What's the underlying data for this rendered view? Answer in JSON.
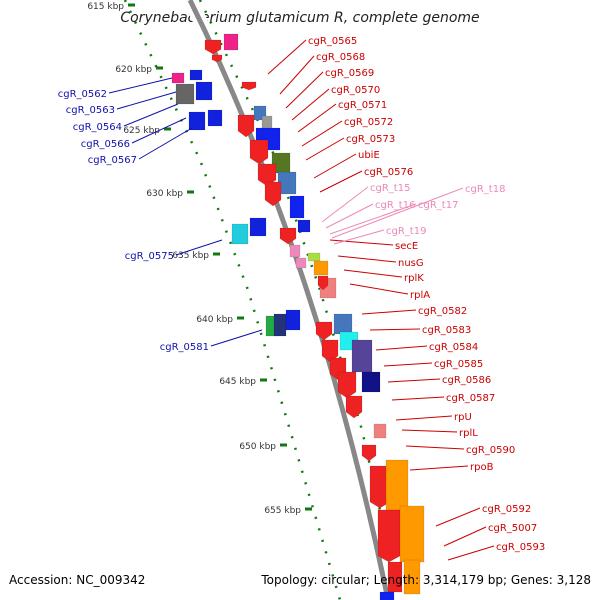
{
  "title": "Corynebacterium glutamicum R, complete genome",
  "footer": {
    "accession": "Accession: NC_009342",
    "topology": "Topology: circular; Length: 3,314,179 bp; Genes: 3,128"
  },
  "ticks": [
    "615 kbp",
    "620 kbp",
    "625 kbp",
    "630 kbp",
    "635 kbp",
    "640 kbp",
    "645 kbp",
    "650 kbp",
    "655 kbp"
  ],
  "left_labels": [
    "cgR_0562",
    "cgR_0563",
    "cgR_0564",
    "cgR_0566",
    "cgR_0567",
    "cgR_0575",
    "cgR_0581"
  ],
  "right_labels": [
    "cgR_0565",
    "cgR_0568",
    "cgR_0569",
    "cgR_0570",
    "cgR_0571",
    "cgR_0572",
    "cgR_0573",
    "ubiE",
    "cgR_0576",
    "secE",
    "nusG",
    "rplK",
    "rplA",
    "cgR_0582",
    "cgR_0583",
    "cgR_0584",
    "cgR_0585",
    "cgR_0586",
    "cgR_0587",
    "rpU",
    "rplL",
    "cgR_0590",
    "rpoB",
    "cgR_0592",
    "cgR_5007",
    "cgR_0593"
  ],
  "trna_labels": [
    "cgR_t15",
    "cgR_t16",
    "cgR_t17",
    "cgR_t18",
    "cgR_t19"
  ],
  "colors": {
    "label_left": "#1010aa",
    "label_right": "#cc0000",
    "label_trna": "#ee88bb",
    "backbone": "#888888",
    "gc_dots": "#117711"
  }
}
